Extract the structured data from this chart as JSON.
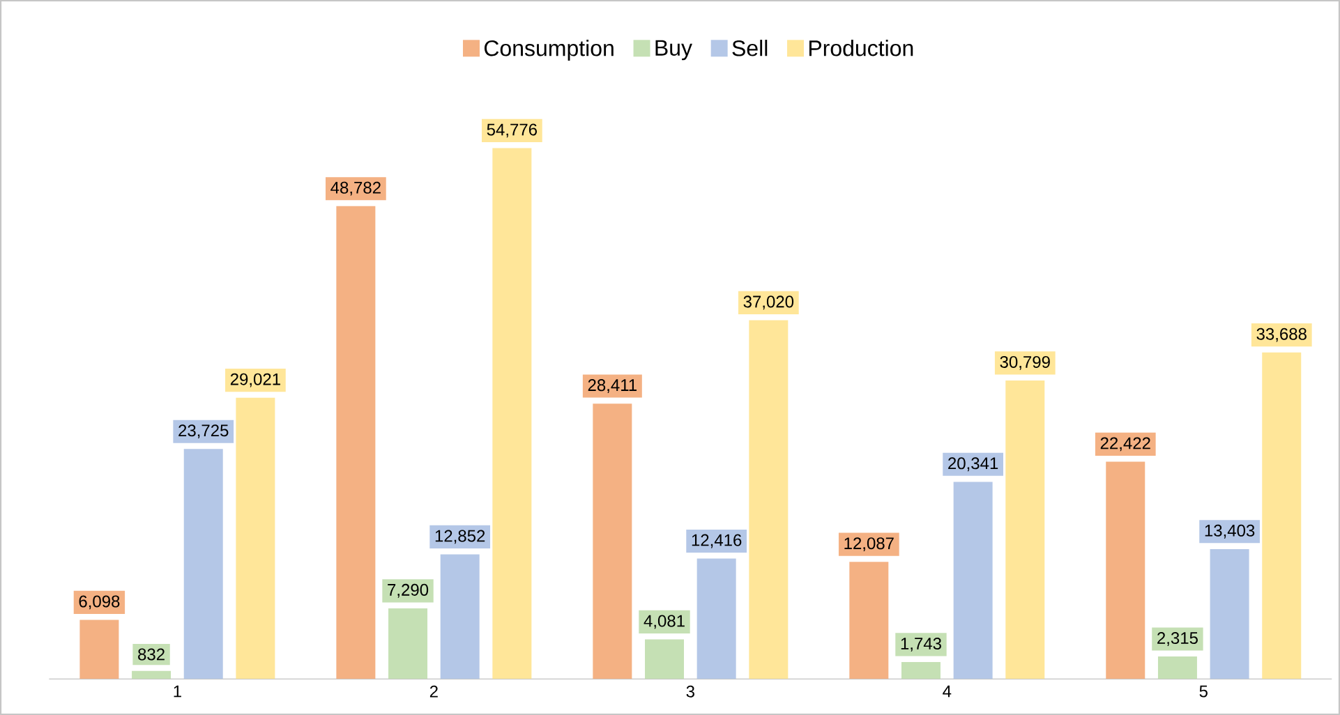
{
  "chart_data": {
    "type": "bar",
    "categories": [
      "1",
      "2",
      "3",
      "4",
      "5"
    ],
    "series": [
      {
        "name": "Consumption",
        "color": "#f4b183",
        "values": [
          6098,
          48782,
          28411,
          12087,
          22422
        ],
        "value_labels": [
          "6,098",
          "48,782",
          "28,411",
          "12,087",
          "22,422"
        ]
      },
      {
        "name": "Buy",
        "color": "#c5e0b4",
        "values": [
          832,
          7290,
          4081,
          1743,
          2315
        ],
        "value_labels": [
          "832",
          "7,290",
          "4,081",
          "1,743",
          "2,315"
        ]
      },
      {
        "name": "Sell",
        "color": "#b4c7e7",
        "values": [
          23725,
          12852,
          12416,
          20341,
          13403
        ],
        "value_labels": [
          "23,725",
          "12,852",
          "12,416",
          "20,341",
          "13,403"
        ]
      },
      {
        "name": "Production",
        "color": "#ffe699",
        "values": [
          29021,
          54776,
          37020,
          30799,
          33688
        ],
        "value_labels": [
          "29,021",
          "54,776",
          "37,020",
          "30,799",
          "33,688"
        ]
      }
    ],
    "tick_labels": "x",
    "legend": "top"
  }
}
